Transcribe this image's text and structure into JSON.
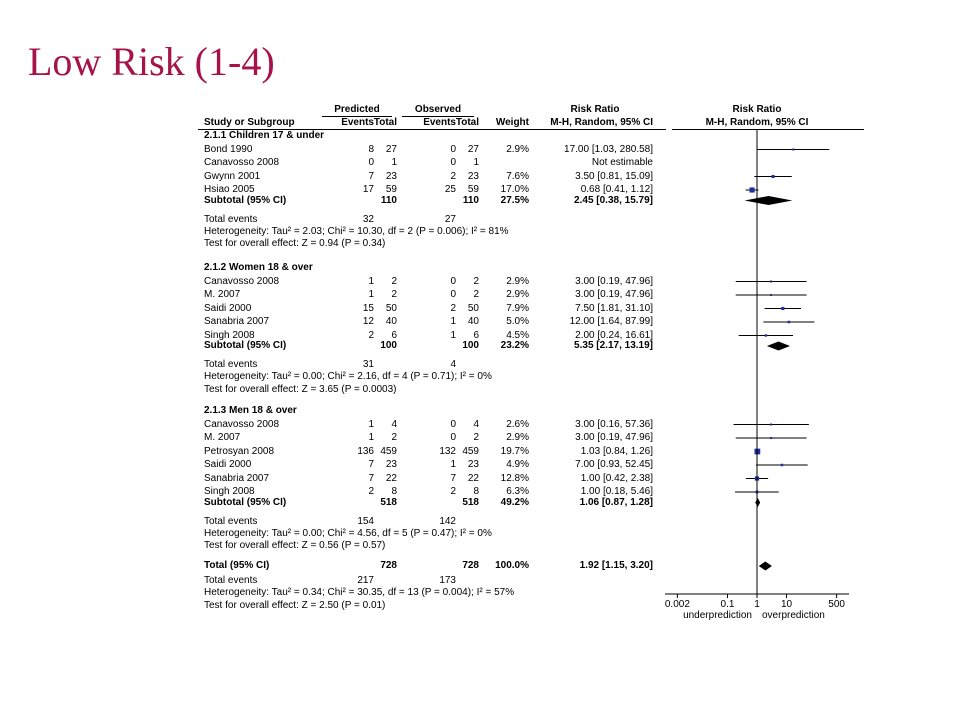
{
  "slide_title": "Low Risk (1-4)",
  "headers": {
    "predicted": "Predicted",
    "observed": "Observed",
    "risk_ratio": "Risk Ratio",
    "study": "Study or Subgroup",
    "events": "Events",
    "total": "Total",
    "weight": "Weight",
    "method": "M-H, Random, 95% CI"
  },
  "chart_data": {
    "type": "forest",
    "scale": "log",
    "axis_ticks": [
      "0.002",
      "0.1",
      "1",
      "10",
      "500"
    ],
    "axis_tick_values": [
      0.002,
      0.1,
      1,
      10,
      500
    ],
    "axis_left_label": "underprediction",
    "axis_right_label": "overprediction",
    "groups": [
      {
        "title": "2.1.1 Children 17 & under",
        "studies": [
          {
            "name": "Bond 1990",
            "pe": "8",
            "pt": "27",
            "oe": "0",
            "ot": "27",
            "weight": "2.9%",
            "ci_text": "17.00 [1.03, 280.58]",
            "rr": 17.0,
            "lo": 1.03,
            "hi": 280.58
          },
          {
            "name": "Canavosso 2008",
            "pe": "0",
            "pt": "1",
            "oe": "0",
            "ot": "1",
            "weight": "",
            "ci_text": "Not estimable",
            "rr": null,
            "lo": null,
            "hi": null
          },
          {
            "name": "Gwynn 2001",
            "pe": "7",
            "pt": "23",
            "oe": "2",
            "ot": "23",
            "weight": "7.6%",
            "ci_text": "3.50 [0.81, 15.09]",
            "rr": 3.5,
            "lo": 0.81,
            "hi": 15.09
          },
          {
            "name": "Hsiao 2005",
            "pe": "17",
            "pt": "59",
            "oe": "25",
            "ot": "59",
            "weight": "17.0%",
            "ci_text": "0.68 [0.41, 1.12]",
            "rr": 0.68,
            "lo": 0.41,
            "hi": 1.12
          }
        ],
        "subtotal": {
          "label": "Subtotal (95% CI)",
          "pt": "110",
          "ot": "110",
          "weight": "27.5%",
          "ci_text": "2.45 [0.38, 15.79]",
          "rr": 2.45,
          "lo": 0.38,
          "hi": 15.79
        },
        "total_events": {
          "label": "Total events",
          "pe": "32",
          "oe": "27"
        },
        "heterogeneity": "Heterogeneity: Tau² = 2.03; Chi² = 10.30, df = 2 (P = 0.006); I² = 81%",
        "overall": "Test for overall effect: Z = 0.94 (P = 0.34)"
      },
      {
        "title": "2.1.2 Women 18 & over",
        "studies": [
          {
            "name": "Canavosso 2008",
            "pe": "1",
            "pt": "2",
            "oe": "0",
            "ot": "2",
            "weight": "2.9%",
            "ci_text": "3.00 [0.19, 47.96]",
            "rr": 3.0,
            "lo": 0.19,
            "hi": 47.96
          },
          {
            "name": "M. 2007",
            "pe": "1",
            "pt": "2",
            "oe": "0",
            "ot": "2",
            "weight": "2.9%",
            "ci_text": "3.00 [0.19, 47.96]",
            "rr": 3.0,
            "lo": 0.19,
            "hi": 47.96
          },
          {
            "name": "Saidi 2000",
            "pe": "15",
            "pt": "50",
            "oe": "2",
            "ot": "50",
            "weight": "7.9%",
            "ci_text": "7.50 [1.81, 31.10]",
            "rr": 7.5,
            "lo": 1.81,
            "hi": 31.1
          },
          {
            "name": "Sanabria 2007",
            "pe": "12",
            "pt": "40",
            "oe": "1",
            "ot": "40",
            "weight": "5.0%",
            "ci_text": "12.00 [1.64, 87.99]",
            "rr": 12.0,
            "lo": 1.64,
            "hi": 87.99
          },
          {
            "name": "Singh 2008",
            "pe": "2",
            "pt": "6",
            "oe": "1",
            "ot": "6",
            "weight": "4.5%",
            "ci_text": "2.00 [0.24, 16.61]",
            "rr": 2.0,
            "lo": 0.24,
            "hi": 16.61
          }
        ],
        "subtotal": {
          "label": "Subtotal (95% CI)",
          "pt": "100",
          "ot": "100",
          "weight": "23.2%",
          "ci_text": "5.35 [2.17, 13.19]",
          "rr": 5.35,
          "lo": 2.17,
          "hi": 13.19
        },
        "total_events": {
          "label": "Total events",
          "pe": "31",
          "oe": "4"
        },
        "heterogeneity": "Heterogeneity: Tau² = 0.00; Chi² = 2.16, df = 4 (P = 0.71); I² = 0%",
        "overall": "Test for overall effect: Z = 3.65 (P = 0.0003)"
      },
      {
        "title": "2.1.3 Men 18 & over",
        "studies": [
          {
            "name": "Canavosso 2008",
            "pe": "1",
            "pt": "4",
            "oe": "0",
            "ot": "4",
            "weight": "2.6%",
            "ci_text": "3.00 [0.16, 57.36]",
            "rr": 3.0,
            "lo": 0.16,
            "hi": 57.36
          },
          {
            "name": "M. 2007",
            "pe": "1",
            "pt": "2",
            "oe": "0",
            "ot": "2",
            "weight": "2.9%",
            "ci_text": "3.00 [0.19, 47.96]",
            "rr": 3.0,
            "lo": 0.19,
            "hi": 47.96
          },
          {
            "name": "Petrosyan 2008",
            "pe": "136",
            "pt": "459",
            "oe": "132",
            "ot": "459",
            "weight": "19.7%",
            "ci_text": "1.03 [0.84, 1.26]",
            "rr": 1.03,
            "lo": 0.84,
            "hi": 1.26
          },
          {
            "name": "Saidi 2000",
            "pe": "7",
            "pt": "23",
            "oe": "1",
            "ot": "23",
            "weight": "4.9%",
            "ci_text": "7.00 [0.93, 52.45]",
            "rr": 7.0,
            "lo": 0.93,
            "hi": 52.45
          },
          {
            "name": "Sanabria 2007",
            "pe": "7",
            "pt": "22",
            "oe": "7",
            "ot": "22",
            "weight": "12.8%",
            "ci_text": "1.00 [0.42, 2.38]",
            "rr": 1.0,
            "lo": 0.42,
            "hi": 2.38
          },
          {
            "name": "Singh 2008",
            "pe": "2",
            "pt": "8",
            "oe": "2",
            "ot": "8",
            "weight": "6.3%",
            "ci_text": "1.00 [0.18, 5.46]",
            "rr": 1.0,
            "lo": 0.18,
            "hi": 5.46
          }
        ],
        "subtotal": {
          "label": "Subtotal (95% CI)",
          "pt": "518",
          "ot": "518",
          "weight": "49.2%",
          "ci_text": "1.06 [0.87, 1.28]",
          "rr": 1.06,
          "lo": 0.87,
          "hi": 1.28
        },
        "total_events": {
          "label": "Total events",
          "pe": "154",
          "oe": "142"
        },
        "heterogeneity": "Heterogeneity: Tau² = 0.00; Chi² = 4.56, df = 5 (P = 0.47); I² = 0%",
        "overall": "Test for overall effect: Z = 0.56 (P = 0.57)"
      }
    ],
    "total": {
      "label": "Total (95% CI)",
      "pt": "728",
      "ot": "728",
      "weight": "100.0%",
      "ci_text": "1.92 [1.15, 3.20]",
      "rr": 1.92,
      "lo": 1.15,
      "hi": 3.2
    },
    "total_events": {
      "label": "Total events",
      "pe": "217",
      "oe": "173"
    },
    "heterogeneity": "Heterogeneity: Tau² = 0.34; Chi² = 30.35, df = 13 (P = 0.004); I² = 57%",
    "overall": "Test for overall effect: Z = 2.50 (P = 0.01)",
    "colors": {
      "marker": "#1f2ea0",
      "line": "#000000",
      "title": "#a5134a"
    }
  }
}
